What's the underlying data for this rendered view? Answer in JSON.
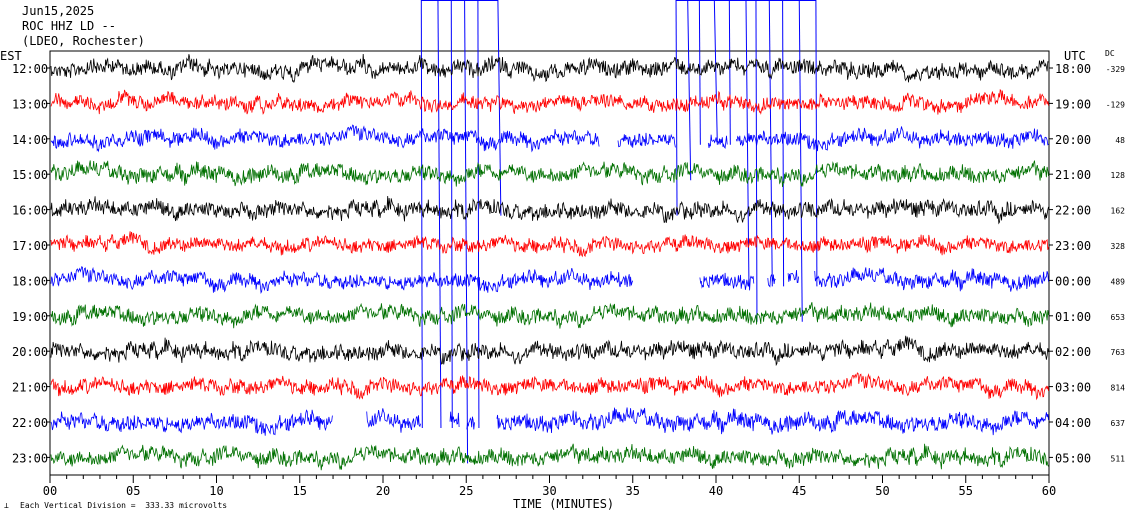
{
  "header": {
    "date": "Jun15,2025",
    "station": "ROC HHZ LD --",
    "network": "(LDEO, Rochester)"
  },
  "left_zone_label": "EST",
  "right_zone_label": "UTC",
  "dc_label": "DC",
  "footer": {
    "scale_note": "Each Vertical Division =  333.33 microvolts"
  },
  "chart_data": {
    "type": "line",
    "title": "",
    "xlabel": "TIME (MINUTES)",
    "ylabel": "",
    "xlim": [
      0,
      60
    ],
    "x_ticks": [
      "00",
      "05",
      "10",
      "15",
      "20",
      "25",
      "30",
      "35",
      "40",
      "45",
      "50",
      "55",
      "60"
    ],
    "trace_colors": [
      "#000000",
      "#ff0000",
      "#0000ff",
      "#007000"
    ],
    "rows": [
      {
        "est": "12:00",
        "utc": "18:00",
        "dc": "-329",
        "color": "#000000",
        "amp": 0.9,
        "gaps": []
      },
      {
        "est": "13:00",
        "utc": "19:00",
        "dc": "-129",
        "color": "#ff0000",
        "amp": 0.8,
        "gaps": []
      },
      {
        "est": "14:00",
        "utc": "20:00",
        "dc": "48",
        "color": "#0000ff",
        "amp": 0.85,
        "gaps": [
          [
            33.0,
            34.1
          ],
          [
            37.6,
            39.5
          ],
          [
            40.7,
            41.2
          ]
        ]
      },
      {
        "est": "15:00",
        "utc": "21:00",
        "dc": "128",
        "color": "#007000",
        "amp": 0.9,
        "gaps": []
      },
      {
        "est": "16:00",
        "utc": "22:00",
        "dc": "162",
        "color": "#000000",
        "amp": 0.9,
        "gaps": []
      },
      {
        "est": "17:00",
        "utc": "23:00",
        "dc": "328",
        "color": "#ff0000",
        "amp": 0.8,
        "gaps": []
      },
      {
        "est": "18:00",
        "utc": "00:00",
        "dc": "489",
        "color": "#0000ff",
        "amp": 0.85,
        "gaps": [
          [
            35.0,
            39.0
          ],
          [
            42.3,
            43.1
          ],
          [
            43.6,
            44.3
          ],
          [
            45.0,
            45.9
          ]
        ]
      },
      {
        "est": "19:00",
        "utc": "01:00",
        "dc": "653",
        "color": "#007000",
        "amp": 0.9,
        "gaps": []
      },
      {
        "est": "20:00",
        "utc": "02:00",
        "dc": "763",
        "color": "#000000",
        "amp": 0.9,
        "gaps": []
      },
      {
        "est": "21:00",
        "utc": "03:00",
        "dc": "814",
        "color": "#ff0000",
        "amp": 0.85,
        "gaps": []
      },
      {
        "est": "22:00",
        "utc": "04:00",
        "dc": "637",
        "color": "#0000ff",
        "amp": 0.95,
        "gaps": [
          [
            17.0,
            19.0
          ],
          [
            22.3,
            24.0
          ],
          [
            24.6,
            25.0
          ],
          [
            25.5,
            26.8
          ]
        ]
      },
      {
        "est": "23:00",
        "utc": "05:00",
        "dc": "511",
        "color": "#007000",
        "amp": 0.9,
        "gaps": []
      }
    ],
    "event_markers": [
      {
        "x": 22.3,
        "rows": [
          0,
          10
        ]
      },
      {
        "x": 23.3,
        "rows": [
          0,
          10
        ]
      },
      {
        "x": 24.1,
        "rows": [
          0,
          10
        ]
      },
      {
        "x": 24.9,
        "rows": [
          0,
          11
        ]
      },
      {
        "x": 25.7,
        "rows": [
          0,
          10
        ]
      },
      {
        "x": 26.9,
        "rows": [
          0,
          4
        ]
      },
      {
        "x": 37.6,
        "rows": [
          0,
          4
        ]
      },
      {
        "x": 38.3,
        "rows": [
          0,
          3
        ]
      },
      {
        "x": 39.0,
        "rows": [
          0,
          2
        ]
      },
      {
        "x": 39.9,
        "rows": [
          0,
          2
        ]
      },
      {
        "x": 40.8,
        "rows": [
          0,
          2
        ]
      },
      {
        "x": 41.8,
        "rows": [
          0,
          6
        ]
      },
      {
        "x": 42.4,
        "rows": [
          0,
          7
        ]
      },
      {
        "x": 43.2,
        "rows": [
          0,
          6
        ]
      },
      {
        "x": 44.0,
        "rows": [
          0,
          6
        ]
      },
      {
        "x": 45.0,
        "rows": [
          0,
          7
        ]
      },
      {
        "x": 46.0,
        "rows": [
          0,
          6
        ]
      }
    ]
  }
}
